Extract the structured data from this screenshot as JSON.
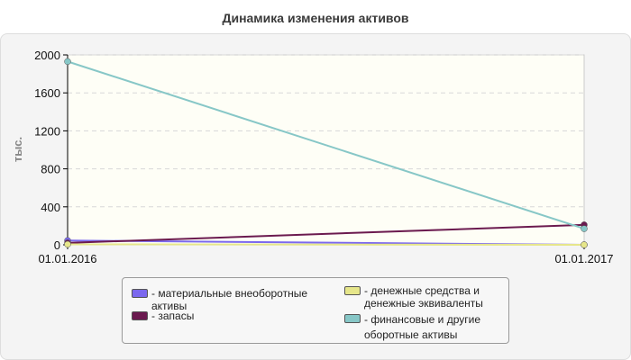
{
  "chart_data": {
    "type": "line",
    "title": "Динамика изменения активов",
    "ylabel": "тыс.",
    "xlabel": "",
    "x": [
      "01.01.2016",
      "01.01.2017"
    ],
    "ylim": [
      0,
      2000
    ],
    "yticks": [
      0,
      400,
      800,
      1200,
      1600,
      2000
    ],
    "grid": true,
    "legend_position": "bottom",
    "series": [
      {
        "name": "материальные внеоборотные активы",
        "values": [
          45,
          0
        ],
        "color": "#7b68ee"
      },
      {
        "name": "запасы",
        "values": [
          20,
          210
        ],
        "color": "#6b1a4f"
      },
      {
        "name": "денежные средства и денежные эквиваленты",
        "values": [
          5,
          0
        ],
        "color": "#e6e68a"
      },
      {
        "name": "финансовые и другие оборотные активы",
        "values": [
          1930,
          170
        ],
        "color": "#87c7c7"
      }
    ]
  }
}
